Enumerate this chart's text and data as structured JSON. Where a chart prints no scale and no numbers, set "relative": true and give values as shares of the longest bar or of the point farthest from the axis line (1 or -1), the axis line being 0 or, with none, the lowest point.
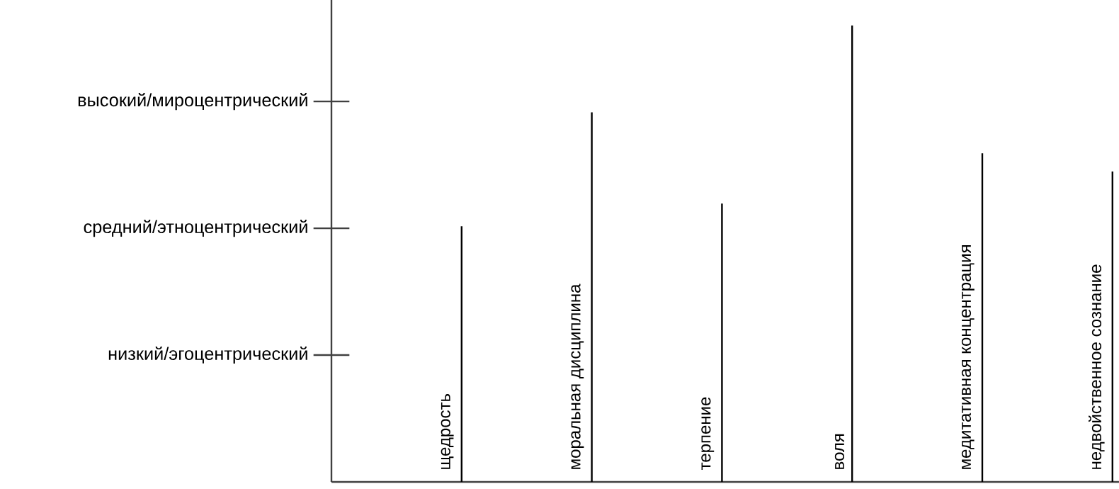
{
  "chart_data": {
    "type": "bar",
    "color": "#000000",
    "relative": true,
    "categories": [
      "щедрость",
      "моральная дисциплина",
      "терпение",
      "воля",
      "медитативная концентрация",
      "недвойственное сознание"
    ],
    "values": [
      0.56,
      0.81,
      0.61,
      1,
      0.72,
      0.68
    ],
    "annotations": [
      "низкий/эгоцентрический",
      "средний/этноцентрический",
      "высокий/мироцентрический"
    ]
  }
}
